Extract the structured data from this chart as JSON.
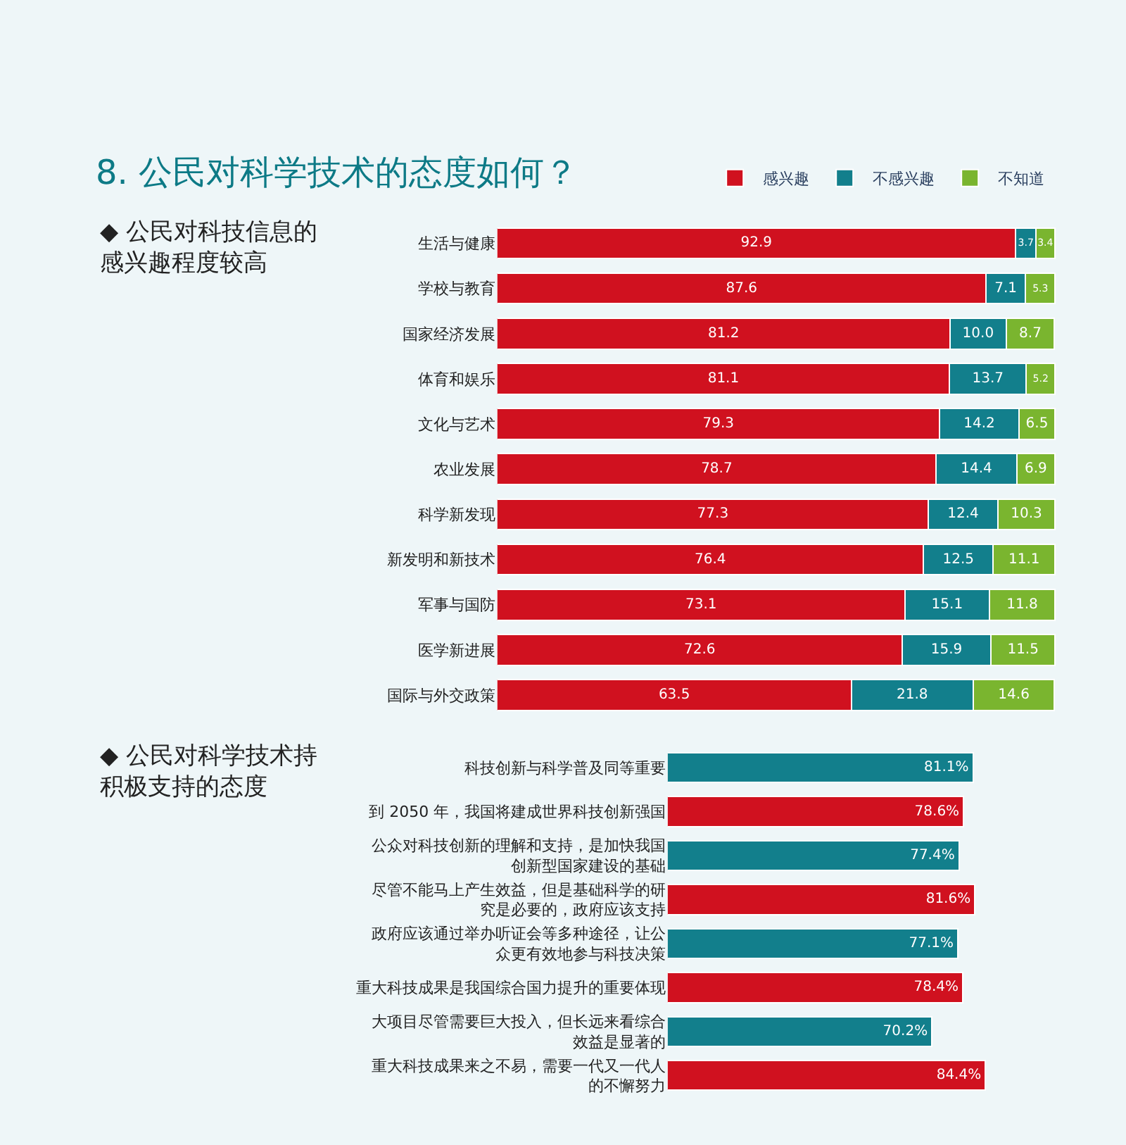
{
  "chart_data": [
    {
      "type": "bar",
      "orientation": "horizontal",
      "stacked": true,
      "title": "8. 公民对科学技术的态度如何？",
      "subtitle": "◆ 公民对科技信息的感兴趣程度较高",
      "categories": [
        "生活与健康",
        "学校与教育",
        "国家经济发展",
        "体育和娱乐",
        "文化与艺术",
        "农业发展",
        "科学新发现",
        "新发明和新技术",
        "军事与国防",
        "医学新进展",
        "国际与外交政策"
      ],
      "series": [
        {
          "name": "感兴趣",
          "color": "#d0111f",
          "values": [
            92.9,
            87.6,
            81.2,
            81.1,
            79.3,
            78.7,
            77.3,
            76.4,
            73.1,
            72.6,
            63.5
          ],
          "value_labels": [
            "92.9",
            "87.6",
            "81.2",
            "81.1",
            "79.3",
            "78.7",
            "77.3",
            "76.4",
            "73.1",
            "72.6",
            "63.5"
          ]
        },
        {
          "name": "不感兴趣",
          "color": "#127f8c",
          "values": [
            3.7,
            7.1,
            10.0,
            13.7,
            14.2,
            14.4,
            12.4,
            12.5,
            15.1,
            15.9,
            21.8
          ],
          "value_labels": [
            "3.7",
            "7.1",
            "10.0",
            "13.7",
            "14.2",
            "14.4",
            "12.4",
            "12.5",
            "15.1",
            "15.9",
            "21.8"
          ]
        },
        {
          "name": "不知道",
          "color": "#7ab52f",
          "values": [
            3.4,
            5.3,
            8.7,
            5.2,
            6.5,
            6.9,
            10.3,
            11.1,
            11.8,
            11.5,
            14.6
          ],
          "value_labels": [
            "3.4",
            "5.3",
            "8.7",
            "5.2",
            "6.5",
            "6.9",
            "10.3",
            "11.1",
            "11.8",
            "11.5",
            "14.6"
          ]
        }
      ],
      "legend": "top right",
      "grid": false,
      "tick_labels": "y"
    },
    {
      "type": "bar",
      "orientation": "horizontal",
      "subtitle": "◆ 公民对科学技术持积极支持的态度",
      "categories": [
        "科技创新与科学普及同等重要",
        "到 2050 年，我国将建成世界科技创新强国",
        "公众对科技创新的理解和支持，是加快我国创新型国家建设的基础",
        "尽管不能马上产生效益，但是基础科学的研究是必要的，政府应该支持",
        "政府应该通过举办听证会等多种途径，让公众更有效地参与科技决策",
        "重大科技成果是我国综合国力提升的重要体现",
        "大项目尽管需要巨大投入，但长远来看综合效益是显著的",
        "重大科技成果来之不易，需要一代又一代人的不懈努力"
      ],
      "values": [
        81.1,
        78.6,
        77.4,
        81.6,
        77.1,
        78.4,
        70.2,
        84.4
      ],
      "value_labels": [
        "81.1%",
        "78.6%",
        "77.4%",
        "81.6%",
        "77.1%",
        "78.4%",
        "70.2%",
        "84.4%"
      ],
      "colors": [
        "#127f8c",
        "#d0111f",
        "#127f8c",
        "#d0111f",
        "#127f8c",
        "#d0111f",
        "#127f8c",
        "#d0111f"
      ],
      "grid": false,
      "tick_labels": "y"
    }
  ]
}
